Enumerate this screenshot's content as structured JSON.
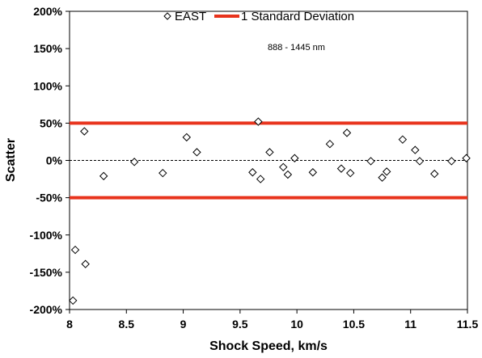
{
  "chart_data": {
    "type": "scatter",
    "title": "",
    "xlabel": "Shock Speed, km/s",
    "ylabel": "Scatter",
    "xlim": [
      8,
      11.5
    ],
    "ylim": [
      -200,
      200
    ],
    "x_ticks": [
      8,
      8.5,
      9,
      9.5,
      10,
      10.5,
      11,
      11.5
    ],
    "x_tick_labels": [
      "8",
      "8.5",
      "9",
      "9.5",
      "10",
      "10.5",
      "11",
      "11.5"
    ],
    "y_ticks": [
      200,
      150,
      100,
      50,
      0,
      -50,
      -100,
      -150,
      -200
    ],
    "y_tick_labels": [
      "200%",
      "150%",
      "100%",
      "50%",
      "0%",
      "-50%",
      "-100%",
      "-150%",
      "-200%"
    ],
    "annotation": "888 - 1445 nm",
    "legend_position": "top-center",
    "grid": false,
    "series": [
      {
        "name": "EAST",
        "marker": "diamond-open",
        "color": "#000000",
        "x": [
          8.03,
          8.05,
          8.13,
          8.14,
          8.3,
          8.57,
          8.82,
          9.03,
          9.12,
          9.61,
          9.66,
          9.68,
          9.76,
          9.88,
          9.92,
          9.98,
          10.14,
          10.29,
          10.39,
          10.44,
          10.47,
          10.65,
          10.75,
          10.79,
          10.93,
          11.04,
          11.08,
          11.21,
          11.36,
          11.49
        ],
        "y": [
          -188,
          -120,
          39,
          -139,
          -21,
          -2,
          -17,
          31,
          11,
          -16,
          52,
          -25,
          11,
          -9,
          -19,
          3,
          -16,
          22,
          -11,
          37,
          -17,
          -1,
          -23,
          -15,
          28,
          14,
          -1,
          -18,
          -1,
          3
        ]
      },
      {
        "name": "1 Standard Deviation",
        "type": "hline",
        "color": "#e8331c",
        "values": [
          50,
          -50
        ]
      }
    ],
    "reference_line": {
      "y": 0,
      "style": "dashed",
      "color": "#000000"
    }
  }
}
